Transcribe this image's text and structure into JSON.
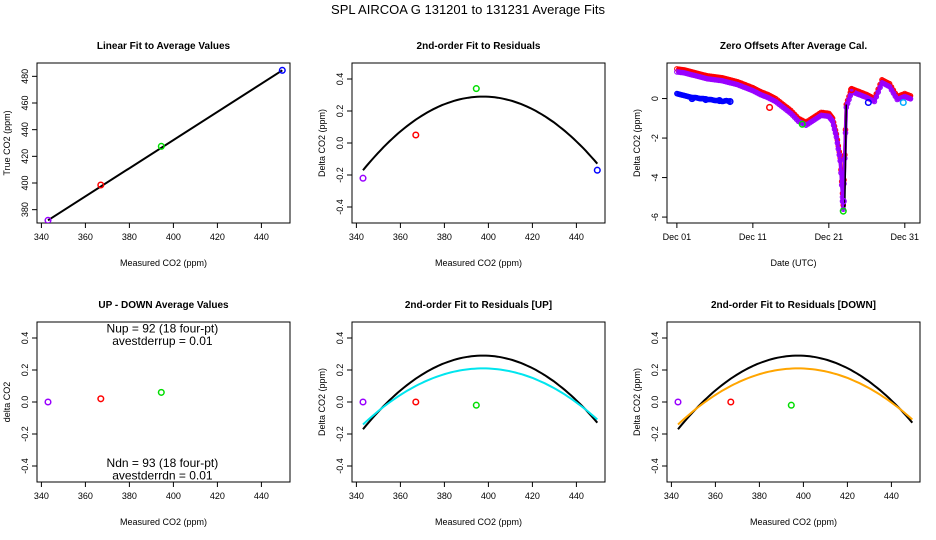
{
  "figure_title": "SPL   AIRCOA G   131201 to 131231   Average Fits",
  "chart_data": [
    {
      "id": "p1",
      "type": "scatter",
      "title": "Linear Fit to Average Values",
      "xlabel": "Measured CO2 (ppm)",
      "ylabel": "True CO2 (ppm)",
      "xlim": [
        338,
        453
      ],
      "ylim": [
        370,
        490
      ],
      "xticks": [
        "340",
        "360",
        "380",
        "400",
        "420",
        "440"
      ],
      "xtick_values": [
        340,
        360,
        380,
        400,
        420,
        440
      ],
      "yticks": [
        "380",
        "400",
        "420",
        "440",
        "460",
        "480"
      ],
      "ytick_values": [
        380,
        400,
        420,
        440,
        460,
        480
      ],
      "points": [
        {
          "x": 343.0,
          "y": 372.0,
          "color": "#9900ff"
        },
        {
          "x": 367.0,
          "y": 398.5,
          "color": "#ff0000"
        },
        {
          "x": 394.5,
          "y": 427.5,
          "color": "#00dd00"
        },
        {
          "x": 449.5,
          "y": 484.5,
          "color": "#0000ff"
        }
      ],
      "lines": [
        {
          "name": "linear fit",
          "color": "#000000",
          "x": [
            343,
            449.5
          ],
          "y": [
            372,
            484.5
          ]
        }
      ]
    },
    {
      "id": "p2",
      "type": "scatter",
      "title": "2nd-order Fit to Residuals",
      "xlabel": "Measured CO2 (ppm)",
      "ylabel": "Delta CO2 (ppm)",
      "xlim": [
        338,
        453
      ],
      "ylim": [
        -0.5,
        0.5
      ],
      "xticks": [
        "340",
        "360",
        "380",
        "400",
        "420",
        "440"
      ],
      "xtick_values": [
        340,
        360,
        380,
        400,
        420,
        440
      ],
      "yticks": [
        "-0.4",
        "-0.2",
        "0.0",
        "0.2",
        "0.4"
      ],
      "ytick_values": [
        -0.4,
        -0.2,
        0.0,
        0.2,
        0.4
      ],
      "points": [
        {
          "x": 343.0,
          "y": -0.22,
          "color": "#9900ff"
        },
        {
          "x": 367.0,
          "y": 0.05,
          "color": "#ff0000"
        },
        {
          "x": 394.5,
          "y": 0.34,
          "color": "#00dd00"
        },
        {
          "x": 449.5,
          "y": -0.17,
          "color": "#0000ff"
        }
      ],
      "curves": [
        {
          "name": "2nd-order fit",
          "color": "#000000",
          "vertex_x": 397.5,
          "vertex_y": 0.29,
          "coef_a": -0.000155,
          "x_from": 343,
          "x_to": 449.5
        }
      ]
    },
    {
      "id": "p3",
      "type": "line",
      "title": "Zero Offsets After Average Cal.",
      "xlabel": "Date (UTC)",
      "ylabel": "Delta CO2 (ppm)",
      "xlim": [
        -1.3,
        32.0
      ],
      "ylim": [
        -6.3,
        1.8
      ],
      "xticks": [
        "Dec 01",
        "Dec 11",
        "Dec 21",
        "Dec 31"
      ],
      "xtick_values": [
        0,
        10,
        20,
        30
      ],
      "yticks": [
        "-6",
        "-4",
        "-2",
        "0"
      ],
      "ytick_values": [
        -6,
        -4,
        -2,
        0
      ],
      "series": [
        {
          "name": "reference series 1 (red)",
          "color": "#ff0000",
          "x": [
            0,
            1,
            2,
            3,
            4,
            5,
            6,
            7,
            8,
            9,
            10,
            11,
            12,
            13,
            14,
            15,
            16,
            17,
            18,
            19,
            20,
            20.5,
            21,
            21.5,
            21.9,
            22.3,
            23,
            24,
            25,
            26,
            27,
            28,
            29,
            30,
            31
          ],
          "y": [
            1.5,
            1.45,
            1.35,
            1.25,
            1.15,
            1.1,
            1.05,
            0.95,
            0.85,
            0.7,
            0.55,
            0.35,
            0.2,
            0.0,
            -0.3,
            -0.6,
            -1.0,
            -1.2,
            -0.95,
            -0.7,
            -0.75,
            -1.0,
            -1.8,
            -3.0,
            -5.4,
            -0.3,
            0.5,
            0.35,
            0.2,
            0.0,
            0.95,
            0.75,
            0.1,
            0.25,
            0.1
          ]
        },
        {
          "name": "reference series 2 (purple)",
          "color": "#9900ff",
          "x": [
            0,
            1,
            2,
            3,
            4,
            5,
            6,
            7,
            8,
            9,
            10,
            11,
            12,
            13,
            14,
            15,
            16,
            17,
            18,
            19,
            20,
            20.5,
            21,
            21.5,
            21.9,
            22.3,
            23,
            24,
            25,
            26,
            27,
            28,
            29,
            30,
            31
          ],
          "y": [
            1.35,
            1.3,
            1.2,
            1.1,
            1.0,
            0.95,
            0.9,
            0.8,
            0.7,
            0.55,
            0.4,
            0.2,
            0.05,
            -0.15,
            -0.45,
            -0.75,
            -1.15,
            -1.35,
            -1.1,
            -0.85,
            -0.9,
            -1.15,
            -1.95,
            -3.15,
            -5.6,
            -0.45,
            0.35,
            0.2,
            0.05,
            -0.15,
            0.8,
            0.6,
            -0.05,
            0.1,
            -0.05
          ]
        },
        {
          "name": "reference series 3 (blue)",
          "color": "#0000ff",
          "x": [
            0,
            0.5,
            1,
            1.5,
            2,
            2.5,
            3,
            3.5,
            4,
            4.5,
            5,
            5.5,
            6,
            6.5,
            7
          ],
          "y": [
            0.25,
            0.2,
            0.15,
            0.1,
            0.05,
            0.05,
            0.0,
            0.0,
            -0.05,
            -0.05,
            -0.1,
            -0.1,
            -0.15,
            -0.1,
            -0.15
          ]
        }
      ],
      "markers": [
        {
          "x": 2.0,
          "y": 0.0,
          "color": "#0000ff"
        },
        {
          "x": 3.8,
          "y": -0.05,
          "color": "#0000ff"
        },
        {
          "x": 5.6,
          "y": -0.1,
          "color": "#0000ff"
        },
        {
          "x": 7.0,
          "y": -0.15,
          "color": "#0000ff"
        },
        {
          "x": 12.2,
          "y": -0.45,
          "color": "#ff0000"
        },
        {
          "x": 16.5,
          "y": -1.3,
          "color": "#00dd00"
        },
        {
          "x": 21.9,
          "y": -5.7,
          "color": "#00dd00"
        },
        {
          "x": 21.9,
          "y": -5.2,
          "color": "#9900ff"
        },
        {
          "x": 23.0,
          "y": 0.45,
          "color": "#ff0000"
        },
        {
          "x": 25.2,
          "y": -0.2,
          "color": "#0000ff"
        },
        {
          "x": 29.8,
          "y": -0.2,
          "color": "#00aaff"
        }
      ]
    },
    {
      "id": "p4",
      "type": "scatter",
      "title": "UP - DOWN Average Values",
      "xlabel": "Measured CO2 (ppm)",
      "ylabel": "delta CO2",
      "xlim": [
        338,
        453
      ],
      "ylim": [
        -0.5,
        0.5
      ],
      "xticks": [
        "340",
        "360",
        "380",
        "400",
        "420",
        "440"
      ],
      "xtick_values": [
        340,
        360,
        380,
        400,
        420,
        440
      ],
      "yticks": [
        "-0.4",
        "-0.2",
        "0.0",
        "0.2",
        "0.4"
      ],
      "ytick_values": [
        -0.4,
        -0.2,
        0.0,
        0.2,
        0.4
      ],
      "points": [
        {
          "x": 343.0,
          "y": 0.0,
          "color": "#9900ff"
        },
        {
          "x": 367.0,
          "y": 0.02,
          "color": "#ff0000"
        },
        {
          "x": 394.5,
          "y": 0.06,
          "color": "#00dd00"
        }
      ],
      "annotations": [
        {
          "text": "Nup = 92 (18 four-pt)",
          "x": 395,
          "y": 0.46
        },
        {
          "text": "avestderrup =  0.01",
          "x": 395,
          "y": 0.38
        },
        {
          "text": "Ndn = 93 (18 four-pt)",
          "x": 395,
          "y": -0.38
        },
        {
          "text": "avestderrdn =  0.01",
          "x": 395,
          "y": -0.46
        }
      ]
    },
    {
      "id": "p5",
      "type": "scatter",
      "title": "2nd-order Fit to Residuals [UP]",
      "xlabel": "Measured CO2 (ppm)",
      "ylabel": "Delta CO2 (ppm)",
      "xlim": [
        338,
        453
      ],
      "ylim": [
        -0.5,
        0.5
      ],
      "xticks": [
        "340",
        "360",
        "380",
        "400",
        "420",
        "440"
      ],
      "xtick_values": [
        340,
        360,
        380,
        400,
        420,
        440
      ],
      "yticks": [
        "-0.4",
        "-0.2",
        "0.0",
        "0.2",
        "0.4"
      ],
      "ytick_values": [
        -0.4,
        -0.2,
        0.0,
        0.2,
        0.4
      ],
      "points": [
        {
          "x": 343.0,
          "y": 0.0,
          "color": "#9900ff"
        },
        {
          "x": 367.0,
          "y": 0.0,
          "color": "#ff0000"
        },
        {
          "x": 394.5,
          "y": -0.02,
          "color": "#00dd00"
        }
      ],
      "curves": [
        {
          "name": "all-data fit",
          "color": "#000000",
          "vertex_x": 397.5,
          "vertex_y": 0.29,
          "coef_a": -0.000155,
          "x_from": 343,
          "x_to": 449.5
        },
        {
          "name": "UP fit",
          "color": "#00e5ee",
          "vertex_x": 397.5,
          "vertex_y": 0.21,
          "coef_a": -0.000118,
          "x_from": 343,
          "x_to": 449.5
        }
      ]
    },
    {
      "id": "p6",
      "type": "scatter",
      "title": "2nd-order Fit to Residuals [DOWN]",
      "xlabel": "Measured CO2 (ppm)",
      "ylabel": "Delta CO2 (ppm)",
      "xlim": [
        338,
        453
      ],
      "ylim": [
        -0.5,
        0.5
      ],
      "xticks": [
        "340",
        "360",
        "380",
        "400",
        "420",
        "440"
      ],
      "xtick_values": [
        340,
        360,
        380,
        400,
        420,
        440
      ],
      "yticks": [
        "-0.4",
        "-0.2",
        "0.0",
        "0.2",
        "0.4"
      ],
      "ytick_values": [
        -0.4,
        -0.2,
        0.0,
        0.2,
        0.4
      ],
      "points": [
        {
          "x": 343.0,
          "y": 0.0,
          "color": "#9900ff"
        },
        {
          "x": 367.0,
          "y": 0.0,
          "color": "#ff0000"
        },
        {
          "x": 394.5,
          "y": -0.02,
          "color": "#00dd00"
        }
      ],
      "curves": [
        {
          "name": "all-data fit",
          "color": "#000000",
          "vertex_x": 397.5,
          "vertex_y": 0.29,
          "coef_a": -0.000155,
          "x_from": 343,
          "x_to": 449.5
        },
        {
          "name": "DOWN fit",
          "color": "#ffa500",
          "vertex_x": 397.5,
          "vertex_y": 0.21,
          "coef_a": -0.000118,
          "x_from": 343,
          "x_to": 449.5
        }
      ]
    }
  ]
}
